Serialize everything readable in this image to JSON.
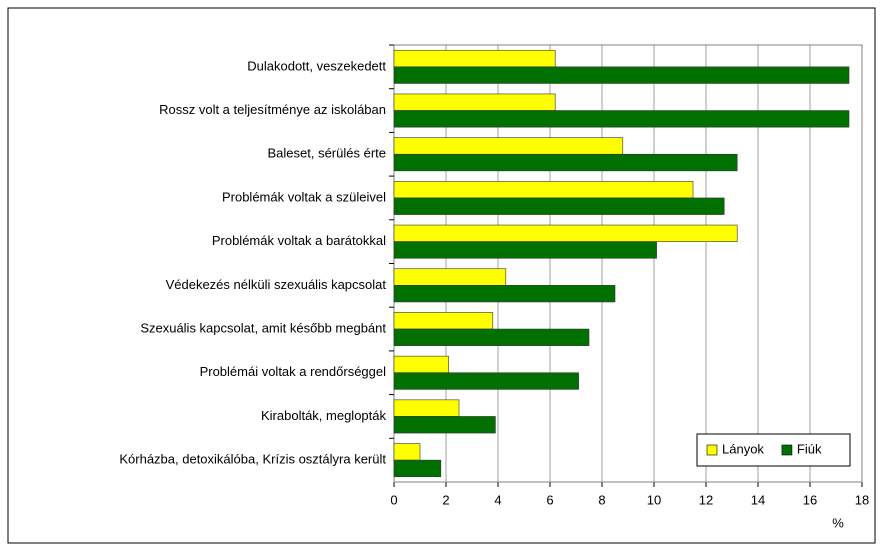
{
  "chart_data": {
    "type": "bar",
    "orientation": "horizontal",
    "categories": [
      "Dulakodott, veszekedett",
      "Rossz volt a teljesítménye az iskolában",
      "Baleset, sérülés érte",
      "Problémák voltak a szüleivel",
      "Problémák voltak a barátokkal",
      "Védekezés nélküli szexuális kapcsolat",
      "Szexuális kapcsolat, amit később megbánt",
      "Problémái voltak a rendőrséggel",
      "Kirabolták, meglopták",
      "Kórházba, detoxikálóba, Krízis osztályra került"
    ],
    "series": [
      {
        "name": "Lányok",
        "color": "#ffff00",
        "values": [
          6.2,
          6.2,
          8.8,
          11.5,
          13.2,
          4.3,
          3.8,
          2.1,
          2.5,
          1.0
        ]
      },
      {
        "name": "Fiúk",
        "color": "#007000",
        "values": [
          17.5,
          17.5,
          13.2,
          12.7,
          10.1,
          8.5,
          7.5,
          7.1,
          3.9,
          1.8
        ]
      }
    ],
    "xlabel": "%",
    "xlim": [
      0,
      18
    ],
    "xticks": [
      0,
      2,
      4,
      6,
      8,
      10,
      12,
      14,
      16,
      18
    ],
    "grid": true,
    "legend": "lower right"
  }
}
